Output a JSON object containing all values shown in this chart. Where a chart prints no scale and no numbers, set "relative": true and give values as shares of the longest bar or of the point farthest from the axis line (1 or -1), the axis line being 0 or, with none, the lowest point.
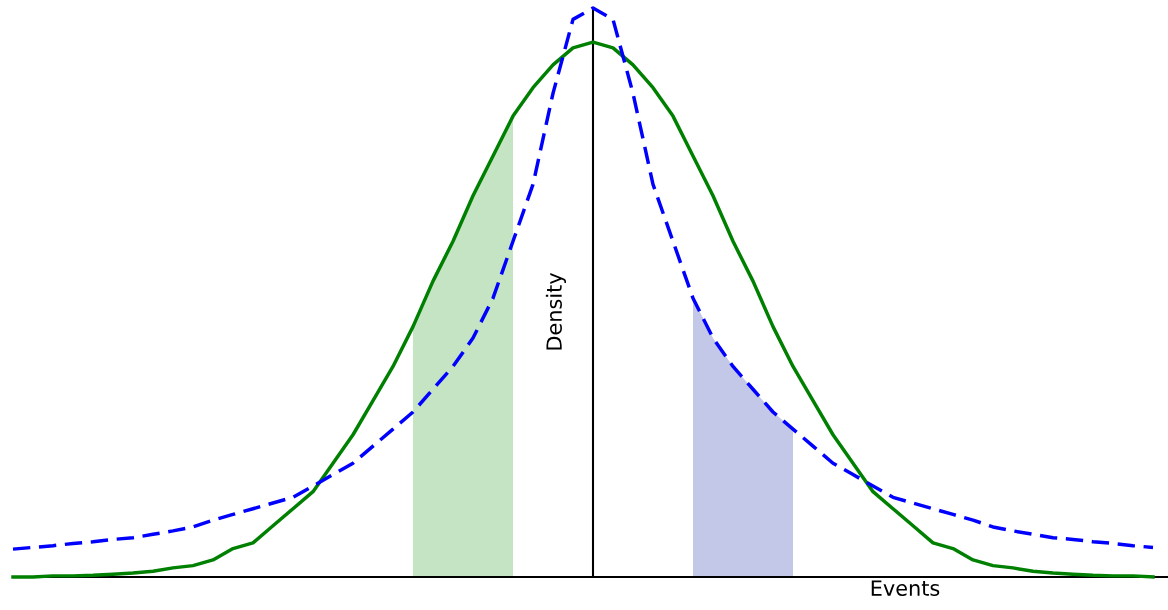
{
  "chart_data": {
    "type": "line",
    "relative": true,
    "xlabel": "Events",
    "ylabel": "Density",
    "categories": [
      null,
      null,
      null,
      null,
      null,
      null,
      null,
      null,
      null,
      null,
      null,
      null,
      null,
      null,
      null,
      null,
      null,
      null,
      null,
      null,
      null,
      null,
      null,
      null,
      null,
      null,
      null,
      null,
      null,
      null,
      null,
      null,
      null,
      null,
      null,
      null,
      null,
      null,
      null,
      null,
      null,
      null,
      null,
      null,
      null,
      null,
      null,
      null,
      null,
      null,
      null,
      null,
      null,
      null,
      null,
      null,
      null,
      null
    ],
    "marker": "none",
    "series": [
      {
        "type": "area",
        "color": "#c4e4c4",
        "values": [
          null,
          null,
          null,
          null,
          null,
          null,
          null,
          null,
          null,
          null,
          null,
          null,
          null,
          null,
          null,
          null,
          null,
          null,
          null,
          null,
          0.44,
          0.52,
          0.59,
          0.67,
          0.74,
          0.81,
          null,
          null,
          null,
          null,
          null,
          null,
          null,
          null,
          null,
          null,
          null,
          null,
          null,
          null,
          null,
          null,
          null,
          null,
          null,
          null,
          null,
          null,
          null,
          null,
          null,
          null,
          null,
          null,
          null,
          null,
          null,
          null
        ]
      },
      {
        "type": "area",
        "color": "#c4c8e8",
        "values": [
          null,
          null,
          null,
          null,
          null,
          null,
          null,
          null,
          null,
          null,
          null,
          null,
          null,
          null,
          null,
          null,
          null,
          null,
          null,
          null,
          null,
          null,
          null,
          null,
          null,
          null,
          null,
          null,
          null,
          null,
          null,
          null,
          null,
          null,
          0.49,
          0.42,
          0.37,
          0.33,
          0.29,
          0.26,
          null,
          null,
          null,
          null,
          null,
          null,
          null,
          null,
          null,
          null,
          null,
          null,
          null,
          null,
          null,
          null,
          null,
          null
        ]
      },
      {
        "color": "#008000",
        "line_style": "solid",
        "values": [
          0,
          0,
          0.002,
          0.002,
          0.003,
          0.005,
          0.007,
          0.01,
          0.016,
          0.02,
          0.03,
          0.05,
          0.06,
          0.09,
          0.12,
          0.15,
          0.2,
          0.25,
          0.31,
          0.37,
          0.44,
          0.52,
          0.59,
          0.67,
          0.74,
          0.81,
          0.86,
          0.9,
          0.93,
          0.94,
          0.93,
          0.9,
          0.86,
          0.81,
          0.74,
          0.67,
          0.59,
          0.52,
          0.44,
          0.37,
          0.31,
          0.25,
          0.2,
          0.15,
          0.12,
          0.09,
          0.06,
          0.05,
          0.03,
          0.02,
          0.016,
          0.01,
          0.007,
          0.005,
          0.003,
          0.002,
          0.002,
          0
        ]
      },
      {
        "color": "#0000ff",
        "line_style": "dashed",
        "values": [
          0.049,
          0.052,
          0.055,
          0.059,
          0.062,
          0.066,
          0.069,
          0.075,
          0.081,
          0.088,
          0.1,
          0.11,
          0.12,
          0.13,
          0.14,
          0.16,
          0.18,
          0.2,
          0.23,
          0.26,
          0.29,
          0.33,
          0.37,
          0.42,
          0.49,
          0.59,
          0.69,
          0.85,
          0.98,
          1,
          0.98,
          0.85,
          0.69,
          0.59,
          0.49,
          0.42,
          0.37,
          0.33,
          0.29,
          0.26,
          0.23,
          0.2,
          0.18,
          0.16,
          0.14,
          0.13,
          0.12,
          0.11,
          0.1,
          0.088,
          0.081,
          0.075,
          0.069,
          0.066,
          0.062,
          0.059,
          0.055,
          0.052
        ]
      }
    ]
  }
}
